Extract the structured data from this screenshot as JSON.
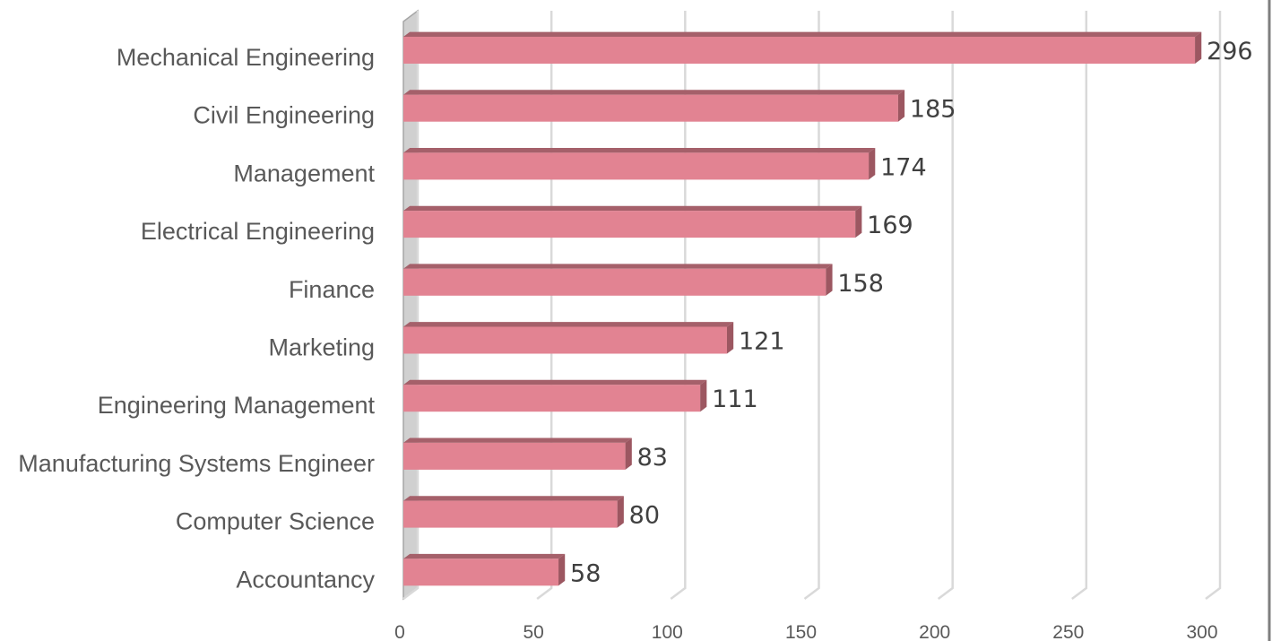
{
  "chart_data": {
    "type": "bar",
    "orientation": "horizontal",
    "categories": [
      "Mechanical Engineering",
      "Civil Engineering",
      "Management",
      "Electrical Engineering",
      "Finance",
      "Marketing",
      "Engineering Management",
      "Manufacturing Systems Engineer",
      "Computer Science",
      "Accountancy"
    ],
    "values": [
      296,
      185,
      174,
      169,
      158,
      121,
      111,
      83,
      80,
      58
    ],
    "x_ticks": [
      "0",
      "50",
      "100",
      "150",
      "200",
      "250",
      "300"
    ],
    "xlim": [
      0,
      300
    ],
    "grid": true,
    "legend": "none",
    "style": "3d",
    "colors": {
      "bar_front": "#e28392",
      "bar_top": "#a5606a",
      "bar_side": "#9c5761",
      "grid": "#d9d9d9",
      "border": "#7f7f7f"
    }
  }
}
